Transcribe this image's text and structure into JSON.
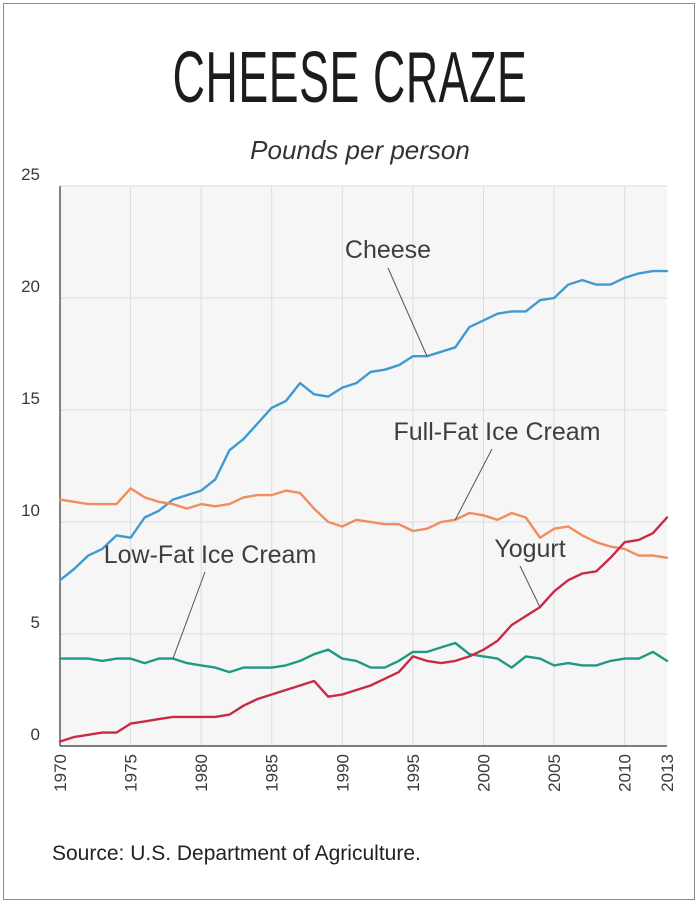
{
  "chart_data": {
    "type": "line",
    "title": "CHEESE CRAZE",
    "subtitle": "Pounds per person",
    "source": "Source: U.S. Department of Agriculture.",
    "xlabel": "",
    "ylabel": "",
    "xlim": [
      1970,
      2013
    ],
    "ylim": [
      0,
      25
    ],
    "x_ticks": [
      "1970",
      "1975",
      "1980",
      "1985",
      "1990",
      "1995",
      "2000",
      "2005",
      "2010",
      "2013"
    ],
    "y_ticks": [
      "0",
      "5",
      "10",
      "15",
      "20",
      "25"
    ],
    "grid": true,
    "x": [
      1970,
      1971,
      1972,
      1973,
      1974,
      1975,
      1976,
      1977,
      1978,
      1979,
      1980,
      1981,
      1982,
      1983,
      1984,
      1985,
      1986,
      1987,
      1988,
      1989,
      1990,
      1991,
      1992,
      1993,
      1994,
      1995,
      1996,
      1997,
      1998,
      1999,
      2000,
      2001,
      2002,
      2003,
      2004,
      2005,
      2006,
      2007,
      2008,
      2009,
      2010,
      2011,
      2012,
      2013
    ],
    "series": [
      {
        "name": "Cheese",
        "color": "#3f9ad3",
        "values": [
          7.4,
          7.9,
          8.5,
          8.8,
          9.4,
          9.3,
          10.2,
          10.5,
          11.0,
          11.2,
          11.4,
          11.9,
          13.2,
          13.7,
          14.4,
          15.1,
          15.4,
          16.2,
          15.7,
          15.6,
          16.0,
          16.2,
          16.7,
          16.8,
          17.0,
          17.4,
          17.4,
          17.6,
          17.8,
          18.7,
          19.0,
          19.3,
          19.4,
          19.4,
          19.9,
          20.0,
          20.6,
          20.8,
          20.6,
          20.6,
          20.9,
          21.1,
          21.2,
          21.2
        ]
      },
      {
        "name": "Full-Fat Ice Cream",
        "color": "#f28c5e",
        "values": [
          11.0,
          10.9,
          10.8,
          10.8,
          10.8,
          11.5,
          11.1,
          10.9,
          10.8,
          10.6,
          10.8,
          10.7,
          10.8,
          11.1,
          11.2,
          11.2,
          11.4,
          11.3,
          10.6,
          10.0,
          9.8,
          10.1,
          10.0,
          9.9,
          9.9,
          9.6,
          9.7,
          10.0,
          10.1,
          10.4,
          10.3,
          10.1,
          10.4,
          10.2,
          9.3,
          9.7,
          9.8,
          9.4,
          9.1,
          8.9,
          8.8,
          8.5,
          8.5,
          8.4
        ]
      },
      {
        "name": "Low-Fat Ice Cream",
        "color": "#1f9a82",
        "values": [
          3.9,
          3.9,
          3.9,
          3.8,
          3.9,
          3.9,
          3.7,
          3.9,
          3.9,
          3.7,
          3.6,
          3.5,
          3.3,
          3.5,
          3.5,
          3.5,
          3.6,
          3.8,
          4.1,
          4.3,
          3.9,
          3.8,
          3.5,
          3.5,
          3.8,
          4.2,
          4.2,
          4.4,
          4.6,
          4.1,
          4.0,
          3.9,
          3.5,
          4.0,
          3.9,
          3.6,
          3.7,
          3.6,
          3.6,
          3.8,
          3.9,
          3.9,
          4.2,
          3.8
        ]
      },
      {
        "name": "Yogurt",
        "color": "#c92a45",
        "values": [
          0.2,
          0.4,
          0.5,
          0.6,
          0.6,
          1.0,
          1.1,
          1.2,
          1.3,
          1.3,
          1.3,
          1.3,
          1.4,
          1.8,
          2.1,
          2.3,
          2.5,
          2.7,
          2.9,
          2.2,
          2.3,
          2.5,
          2.7,
          3.0,
          3.3,
          4.0,
          3.8,
          3.7,
          3.8,
          4.0,
          4.3,
          4.7,
          5.4,
          5.8,
          6.2,
          6.9,
          7.4,
          7.7,
          7.8,
          8.4,
          9.1,
          9.2,
          9.5,
          10.2
        ]
      }
    ],
    "annotations": [
      {
        "text": "Cheese",
        "series": "Cheese",
        "x": 1996
      },
      {
        "text": "Full-Fat Ice Cream",
        "series": "Full-Fat Ice Cream",
        "x": 1998
      },
      {
        "text": "Low-Fat Ice Cream",
        "series": "Low-Fat Ice Cream",
        "x": 1978
      },
      {
        "text": "Yogurt",
        "series": "Yogurt",
        "x": 2004
      }
    ]
  }
}
